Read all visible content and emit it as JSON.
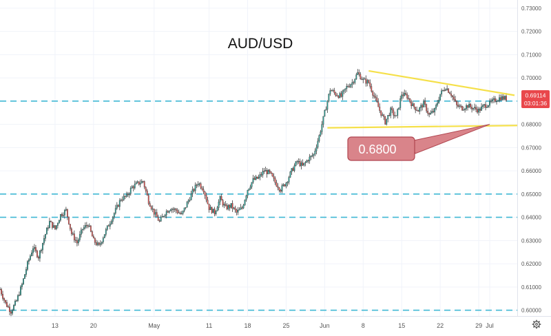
{
  "colors": {
    "up": "#26a69a",
    "down": "#ef5350",
    "wick": "#3b3b3b",
    "dashed_level": "#3fb7d4",
    "trendline": "#f5e04a",
    "callout_fill": "#d9848a",
    "callout_border": "#b0454f",
    "price_tag_bg": "#e9474b",
    "grid": "#f0f3fa",
    "axis_text": "#555555"
  },
  "chart_data": {
    "type": "candlestick",
    "title": "AUD/USD",
    "xlabel": "",
    "ylabel": "",
    "ylim": [
      0.5975,
      0.7335
    ],
    "grid": true,
    "y_ticks": [
      "0.73000",
      "0.72000",
      "0.71000",
      "0.70000",
      "0.69000",
      "0.68000",
      "0.67000",
      "0.66000",
      "0.65000",
      "0.64000",
      "0.63000",
      "0.62000",
      "0.61000",
      "0.60000"
    ],
    "x_ticks": [
      {
        "label": "13",
        "day": 12
      },
      {
        "label": "20",
        "day": 19
      },
      {
        "label": "May",
        "day": 30
      },
      {
        "label": "11",
        "day": 40
      },
      {
        "label": "18",
        "day": 47
      },
      {
        "label": "25",
        "day": 54
      },
      {
        "label": "Jun",
        "day": 61
      },
      {
        "label": "8",
        "day": 68
      },
      {
        "label": "15",
        "day": 75
      },
      {
        "label": "22",
        "day": 82
      },
      {
        "label": "29",
        "day": 89
      },
      {
        "label": "Jul",
        "day": 91
      }
    ],
    "x_day_range": [
      2,
      96
    ],
    "horizontal_levels": [
      0.69,
      0.65,
      0.64,
      0.6
    ],
    "trendlines": [
      {
        "name": "upper",
        "from": {
          "day": 69.0,
          "price": 0.703
        },
        "to": {
          "day": 95.5,
          "price": 0.6925
        }
      },
      {
        "name": "lower",
        "from": {
          "day": 61.5,
          "price": 0.6785
        },
        "to": {
          "day": 96.0,
          "price": 0.6795
        }
      }
    ],
    "callout": {
      "text": "0.6800",
      "target": {
        "day": 91,
        "price": 0.68
      }
    },
    "last_price": {
      "value": "0.69114",
      "countdown": "03:01:36"
    },
    "key_points": [
      [
        2,
        0.609
      ],
      [
        3,
        0.603
      ],
      [
        4,
        0.5995
      ],
      [
        5,
        0.604
      ],
      [
        6,
        0.611
      ],
      [
        7,
        0.62
      ],
      [
        8,
        0.627
      ],
      [
        9,
        0.623
      ],
      [
        10,
        0.631
      ],
      [
        11,
        0.638
      ],
      [
        12,
        0.635
      ],
      [
        13,
        0.641
      ],
      [
        14,
        0.643
      ],
      [
        15,
        0.633
      ],
      [
        16,
        0.629
      ],
      [
        17,
        0.635
      ],
      [
        18,
        0.637
      ],
      [
        19,
        0.63
      ],
      [
        20,
        0.6275
      ],
      [
        21,
        0.633
      ],
      [
        22,
        0.638
      ],
      [
        23,
        0.643
      ],
      [
        24,
        0.648
      ],
      [
        25,
        0.649
      ],
      [
        26,
        0.653
      ],
      [
        27,
        0.6545
      ],
      [
        28,
        0.6555
      ],
      [
        29,
        0.647
      ],
      [
        30,
        0.642
      ],
      [
        31,
        0.638
      ],
      [
        32,
        0.642
      ],
      [
        33,
        0.644
      ],
      [
        34,
        0.643
      ],
      [
        35,
        0.641
      ],
      [
        36,
        0.646
      ],
      [
        37,
        0.651
      ],
      [
        38,
        0.655
      ],
      [
        39,
        0.652
      ],
      [
        40,
        0.644
      ],
      [
        41,
        0.642
      ],
      [
        42,
        0.648
      ],
      [
        43,
        0.644
      ],
      [
        44,
        0.645
      ],
      [
        45,
        0.642
      ],
      [
        46,
        0.644
      ],
      [
        47,
        0.652
      ],
      [
        48,
        0.656
      ],
      [
        49,
        0.657
      ],
      [
        50,
        0.66
      ],
      [
        51,
        0.659
      ],
      [
        52,
        0.655
      ],
      [
        53,
        0.652
      ],
      [
        54,
        0.655
      ],
      [
        55,
        0.66
      ],
      [
        56,
        0.664
      ],
      [
        57,
        0.662
      ],
      [
        58,
        0.665
      ],
      [
        59,
        0.667
      ],
      [
        60,
        0.675
      ],
      [
        61,
        0.685
      ],
      [
        62,
        0.695
      ],
      [
        63,
        0.693
      ],
      [
        64,
        0.692
      ],
      [
        65,
        0.696
      ],
      [
        66,
        0.698
      ],
      [
        67,
        0.702
      ],
      [
        68,
        0.699
      ],
      [
        69,
        0.698
      ],
      [
        70,
        0.692
      ],
      [
        71,
        0.686
      ],
      [
        72,
        0.681
      ],
      [
        73,
        0.686
      ],
      [
        74,
        0.683
      ],
      [
        75,
        0.693
      ],
      [
        76,
        0.692
      ],
      [
        77,
        0.688
      ],
      [
        78,
        0.686
      ],
      [
        79,
        0.689
      ],
      [
        80,
        0.684
      ],
      [
        81,
        0.686
      ],
      [
        82,
        0.693
      ],
      [
        83,
        0.696
      ],
      [
        84,
        0.693
      ],
      [
        85,
        0.688
      ],
      [
        86,
        0.687
      ],
      [
        87,
        0.688
      ],
      [
        88,
        0.687
      ],
      [
        89,
        0.686
      ],
      [
        90,
        0.688
      ],
      [
        91,
        0.689
      ],
      [
        92,
        0.6905
      ],
      [
        93,
        0.6915
      ],
      [
        94,
        0.6911
      ]
    ]
  }
}
